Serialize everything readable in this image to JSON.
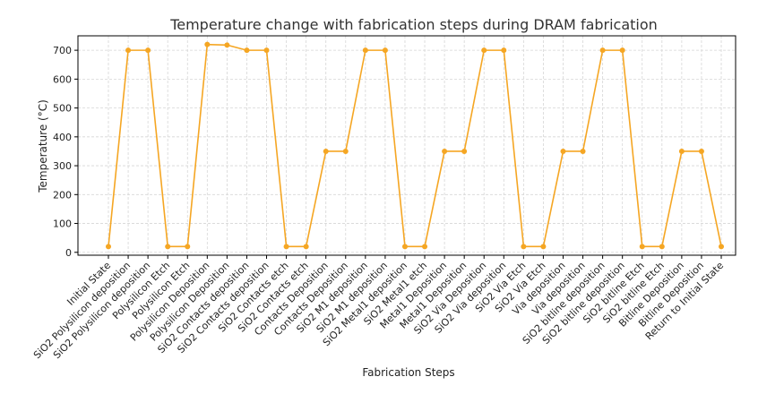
{
  "colors": {
    "series": "#F5A623"
  },
  "chart_data": {
    "type": "line",
    "title": "Temperature change with fabrication steps during DRAM fabrication",
    "xlabel": "Fabrication Steps",
    "ylabel": "Temperature (°C)",
    "ylim": [
      -10,
      750
    ],
    "yticks": [
      0,
      100,
      200,
      300,
      400,
      500,
      600,
      700
    ],
    "grid": true,
    "marker": "circle",
    "categories": [
      "Initial State",
      "SiO2 Polysilicon deposition",
      "SiO2 Polysilicon deposition",
      "Polysilicon Etch",
      "Polysilicon Etch",
      "Polysilicon Deposition",
      "Polysilicon Deposition",
      "SiO2 Contacts deposition",
      "SiO2 Contacts deposition",
      "SiO2 Contacts etch",
      "SiO2 Contacts etch",
      "Contacts Deposition",
      "Contacts Deposition",
      "SiO2 M1 deposition",
      "SiO2 M1 deposition",
      "SiO2 Metal1 deposition",
      "SiO2 Metal1 etch",
      "Metal1 Deposition",
      "Metal1 Deposition",
      "SiO2 Via Deposition",
      "SiO2 Via deposition",
      "SiO2 Via Etch",
      "SiO2 Via Etch",
      "Via deposition",
      "Via deposition",
      "SiO2 bitline deposition",
      "SiO2 bitline deposition",
      "SiO2 bitline Etch",
      "SiO2 bitline Etch",
      "Bitline Deposition",
      "Bitline Deposition",
      "Return to Initial State"
    ],
    "series": [
      {
        "values": [
          20,
          700,
          700,
          20,
          20,
          720,
          718,
          700,
          700,
          20,
          20,
          350,
          350,
          700,
          700,
          20,
          20,
          350,
          350,
          700,
          700,
          20,
          20,
          350,
          350,
          700,
          700,
          20,
          20,
          350,
          350,
          20
        ]
      }
    ]
  }
}
